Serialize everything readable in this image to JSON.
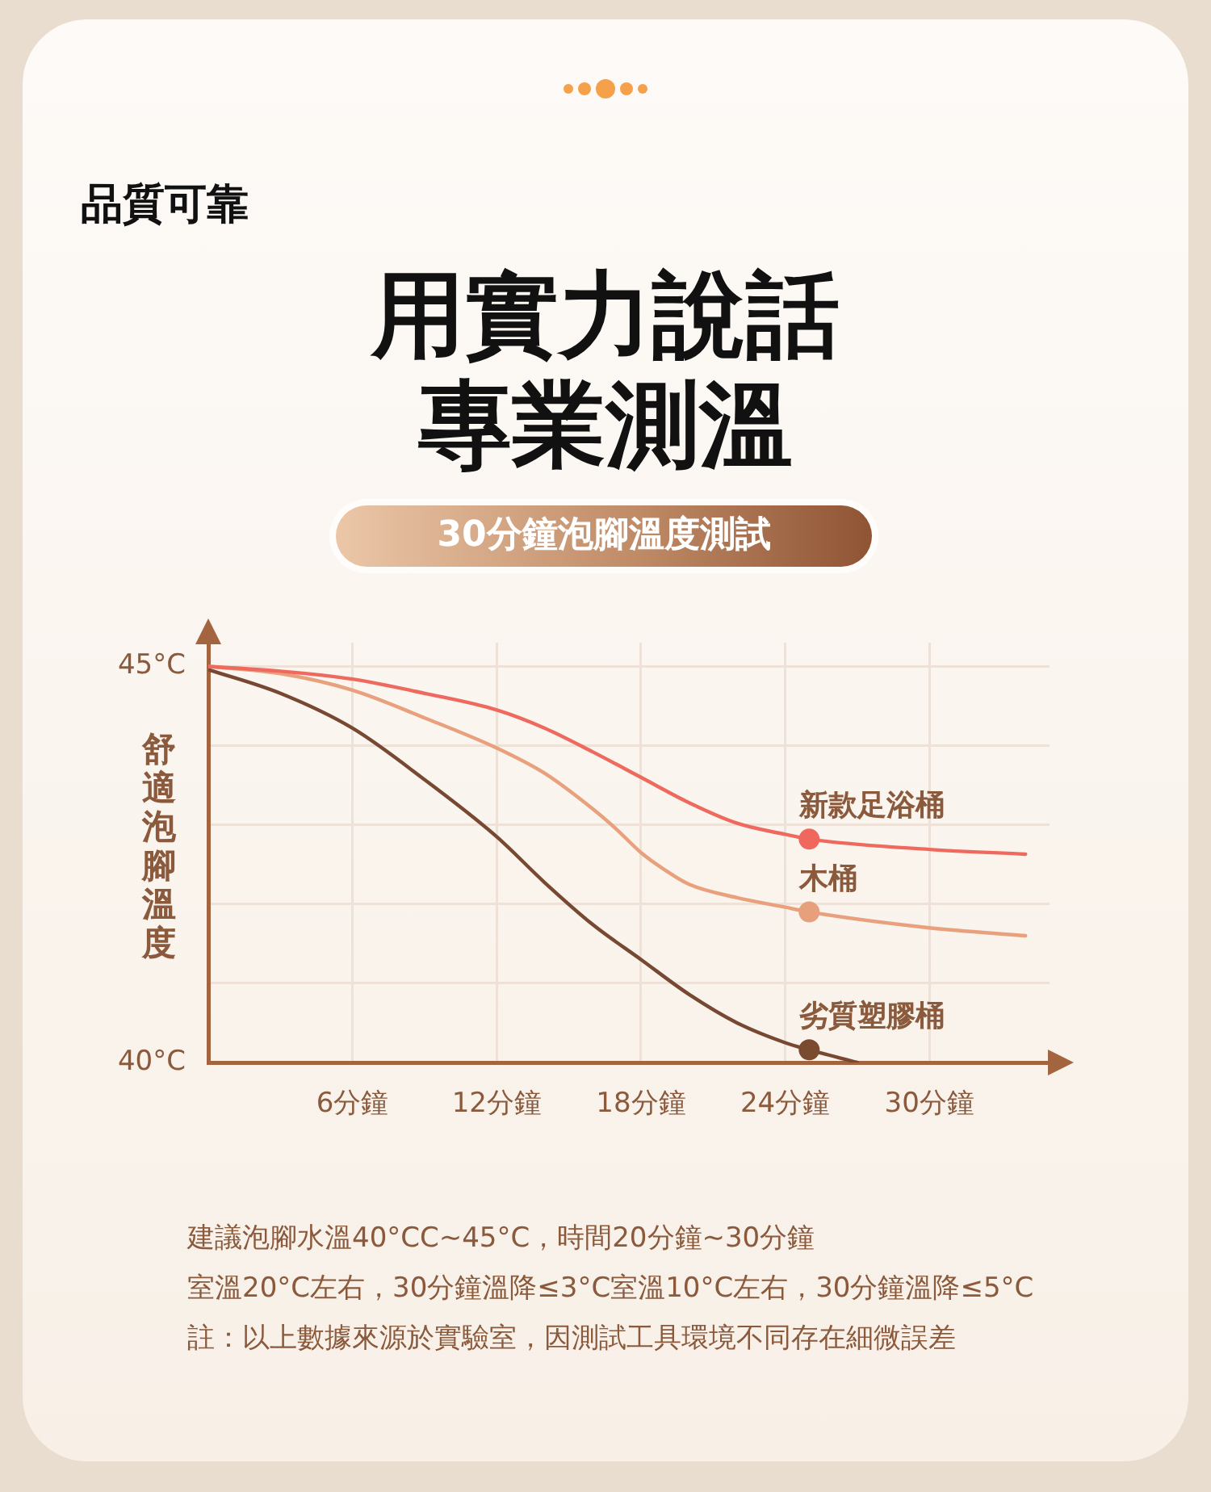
{
  "chart_data": {
    "type": "line",
    "title": "用實力說話專業測溫",
    "subtitle": "30分鐘泡腳溫度測試",
    "ylabel": "舒適泡腳溫度",
    "series": [
      {
        "name": "新款足浴桶",
        "color": "#ef6a5e",
        "x": [
          0,
          3,
          6,
          9,
          12,
          14,
          16,
          18,
          20,
          22,
          24,
          25,
          30,
          34
        ],
        "values": [
          45,
          44.94,
          44.84,
          44.66,
          44.45,
          44.22,
          43.92,
          43.6,
          43.28,
          43.02,
          42.88,
          42.82,
          42.69,
          42.63
        ]
      },
      {
        "name": "木桶",
        "color": "#e8a17c",
        "x": [
          0,
          3,
          6,
          9,
          12,
          14,
          16,
          17,
          18,
          19,
          20,
          22,
          24,
          25,
          30,
          34
        ],
        "values": [
          45,
          44.91,
          44.7,
          44.35,
          43.97,
          43.65,
          43.2,
          42.94,
          42.65,
          42.43,
          42.25,
          42.08,
          41.96,
          41.9,
          41.7,
          41.6
        ]
      },
      {
        "name": "劣質塑膠桶",
        "color": "#774832",
        "x": [
          0,
          3,
          6,
          9,
          12,
          14,
          16,
          18,
          20,
          22,
          24,
          25,
          27
        ],
        "values": [
          44.96,
          44.66,
          44.22,
          43.57,
          42.85,
          42.27,
          41.74,
          41.3,
          40.86,
          40.5,
          40.25,
          40.16,
          40
        ]
      },
      {
        "type": "scatter",
        "marker": "circle",
        "x": [
          25,
          25,
          25
        ],
        "values": [
          42.82,
          41.9,
          40.16
        ],
        "colors": [
          "#f0675e",
          "#e6a07c",
          "#7a4a31"
        ]
      }
    ],
    "xlim": [
      0,
      35
    ],
    "xticks": [
      {
        "value": 6,
        "label": "6分鐘"
      },
      {
        "value": 12,
        "label": "12分鐘"
      },
      {
        "value": 18,
        "label": "18分鐘"
      },
      {
        "value": 24,
        "label": "24分鐘"
      },
      {
        "value": 30,
        "label": "30分鐘"
      }
    ],
    "ylim": [
      40,
      45.3
    ],
    "yticks": [
      {
        "value": 40,
        "label": "40°C"
      },
      {
        "value": 41,
        "label": null
      },
      {
        "value": 42,
        "label": null
      },
      {
        "value": 43,
        "label": null
      },
      {
        "value": 44,
        "label": null
      },
      {
        "value": 45,
        "label": "45°C"
      }
    ],
    "grid": true,
    "legend": false,
    "marker": "none",
    "annotations": [
      "品質可靠",
      "建議泡腳水溫40°CC~45°C，時間20分鐘~30分鐘",
      "室溫20°C左右，30分鐘溫降≤3°C室溫10°C左右，30分鐘溫降≤5°C",
      "註：以上數據來源於實驗室，因測試工具環境不同存在細微誤差"
    ]
  }
}
